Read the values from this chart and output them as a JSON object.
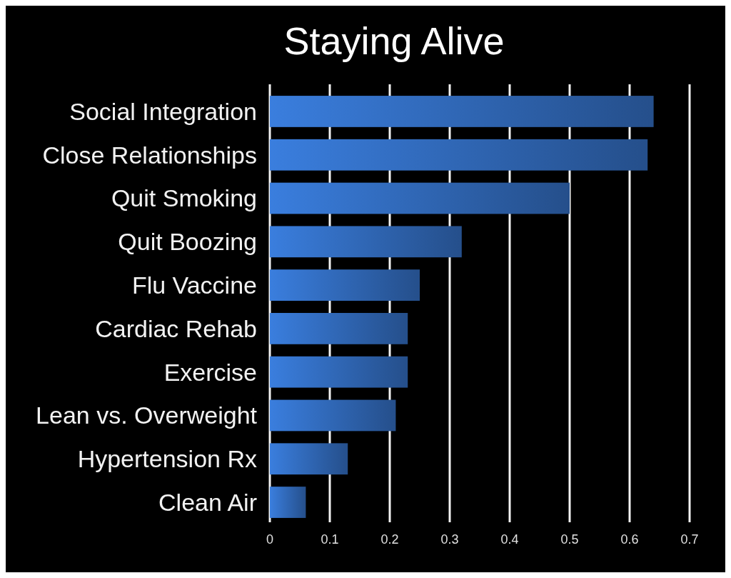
{
  "chart_data": {
    "type": "bar",
    "orientation": "horizontal",
    "title": "Staying Alive",
    "categories": [
      "Social Integration",
      "Close Relationships",
      "Quit Smoking",
      "Quit Boozing",
      "Flu Vaccine",
      "Cardiac Rehab",
      "Exercise",
      "Lean vs. Overweight",
      "Hypertension Rx",
      "Clean Air"
    ],
    "values": [
      0.64,
      0.63,
      0.5,
      0.32,
      0.25,
      0.23,
      0.23,
      0.21,
      0.13,
      0.06
    ],
    "color": "#2f66b3",
    "xlim": [
      0,
      0.7
    ],
    "xticks": [
      0,
      0.1,
      0.2,
      0.3,
      0.4,
      0.5,
      0.6,
      0.7
    ],
    "grid": "x"
  }
}
